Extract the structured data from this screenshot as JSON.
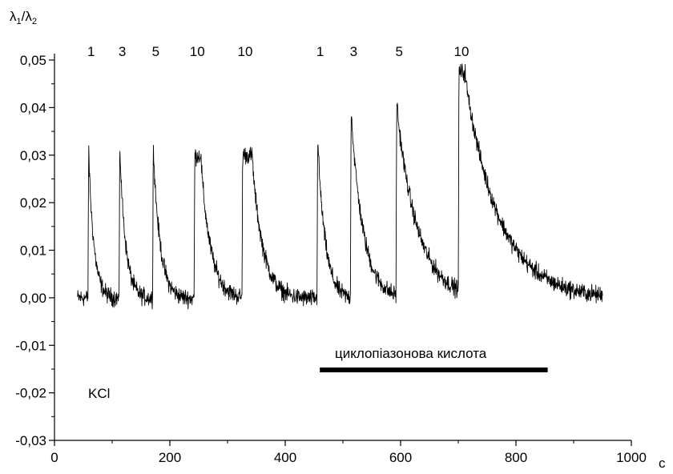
{
  "chart_data": {
    "type": "line",
    "title": "",
    "ylabel_parts": {
      "lambda": "λ",
      "sub1": "1",
      "slash": "/",
      "sub2": "2"
    },
    "xlabel": "c",
    "xlim": [
      0,
      1000
    ],
    "ylim": [
      -0.03,
      0.05
    ],
    "x_ticks": [
      {
        "value": 0,
        "label": "0"
      },
      {
        "value": 200,
        "label": "200"
      },
      {
        "value": 400,
        "label": "400"
      },
      {
        "value": 600,
        "label": "600"
      },
      {
        "value": 800,
        "label": "800"
      },
      {
        "value": 1000,
        "label": "1000"
      }
    ],
    "y_ticks": [
      {
        "value": 0.05,
        "label": "0,05"
      },
      {
        "value": 0.04,
        "label": "0,04"
      },
      {
        "value": 0.03,
        "label": "0,03"
      },
      {
        "value": 0.02,
        "label": "0,02"
      },
      {
        "value": 0.01,
        "label": "0,01"
      },
      {
        "value": 0.0,
        "label": "0,00"
      },
      {
        "value": -0.01,
        "label": "-0,01"
      },
      {
        "value": -0.02,
        "label": "-0,02"
      },
      {
        "value": -0.03,
        "label": "-0,03"
      }
    ],
    "grid": false,
    "baseline": 0.0,
    "trace_start": 40,
    "trace_end": 950,
    "pulses": [
      {
        "label": "1",
        "onset": 58,
        "peak": 0.031,
        "plateau": 0,
        "decay": 10
      },
      {
        "label": "3",
        "onset": 112,
        "peak": 0.032,
        "plateau": 0,
        "decay": 11
      },
      {
        "label": "5",
        "onset": 170,
        "peak": 0.032,
        "plateau": 0,
        "decay": 13
      },
      {
        "label": "10",
        "onset": 242,
        "peak": 0.031,
        "plateau": 10,
        "decay": 18
      },
      {
        "label": "10",
        "onset": 325,
        "peak": 0.031,
        "plateau": 16,
        "decay": 20
      },
      {
        "label": "1",
        "onset": 455,
        "peak": 0.034,
        "plateau": 0,
        "decay": 14
      },
      {
        "label": "3",
        "onset": 513,
        "peak": 0.04,
        "plateau": 0,
        "decay": 22
      },
      {
        "label": "5",
        "onset": 592,
        "peak": 0.041,
        "plateau": 0,
        "decay": 38
      },
      {
        "label": "10",
        "onset": 700,
        "peak": 0.047,
        "plateau": 10,
        "decay": 62
      }
    ],
    "annotations": {
      "compound": "циклопіазонова кислота",
      "compound_bar": [
        460,
        855
      ],
      "control": "KCl"
    }
  }
}
